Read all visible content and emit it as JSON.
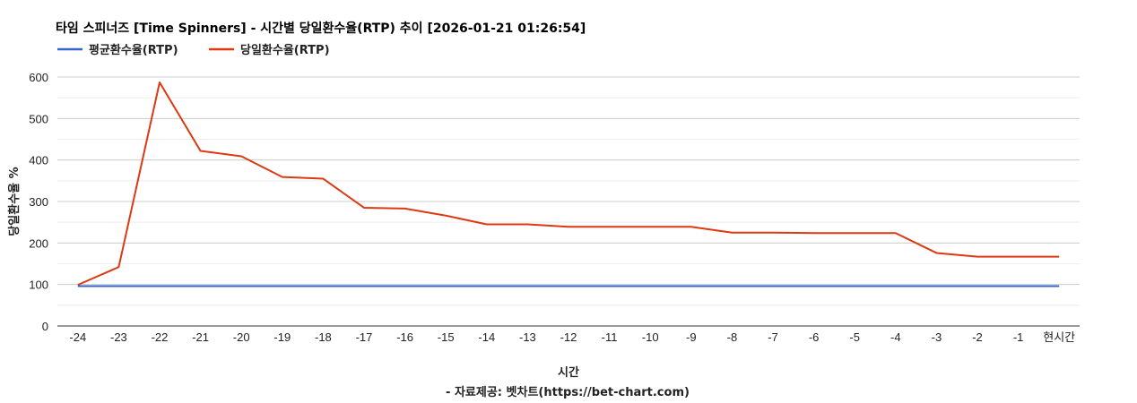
{
  "chart_data": {
    "type": "line",
    "title": "타임 스피너즈 [Time Spinners] - 시간별 당일환수율(RTP) 추이 [2026-01-21 01:26:54]",
    "xlabel": "시간",
    "ylabel": "당일환수율 %",
    "source": "- 자료제공: 벳차트(https://bet-chart.com)",
    "categories": [
      "-24",
      "-23",
      "-22",
      "-21",
      "-20",
      "-19",
      "-18",
      "-17",
      "-16",
      "-15",
      "-14",
      "-13",
      "-12",
      "-11",
      "-10",
      "-9",
      "-8",
      "-7",
      "-6",
      "-5",
      "-4",
      "-3",
      "-2",
      "-1",
      "현시간"
    ],
    "ylim": [
      0,
      600
    ],
    "yticks": [
      0,
      100,
      200,
      300,
      400,
      500,
      600
    ],
    "grid": true,
    "legend_position": "top-left",
    "series": [
      {
        "name": "평균환수율(RTP)",
        "color": "#3366cc",
        "values": [
          96,
          96,
          96,
          96,
          96,
          96,
          96,
          96,
          96,
          96,
          96,
          96,
          96,
          96,
          96,
          96,
          96,
          96,
          96,
          96,
          96,
          96,
          96,
          96,
          96
        ]
      },
      {
        "name": "당일환수율(RTP)",
        "color": "#dc3912",
        "values": [
          99,
          142,
          587,
          422,
          409,
          359,
          355,
          285,
          283,
          266,
          245,
          245,
          239,
          239,
          239,
          239,
          225,
          225,
          224,
          224,
          224,
          176,
          167,
          167,
          167
        ]
      }
    ]
  }
}
